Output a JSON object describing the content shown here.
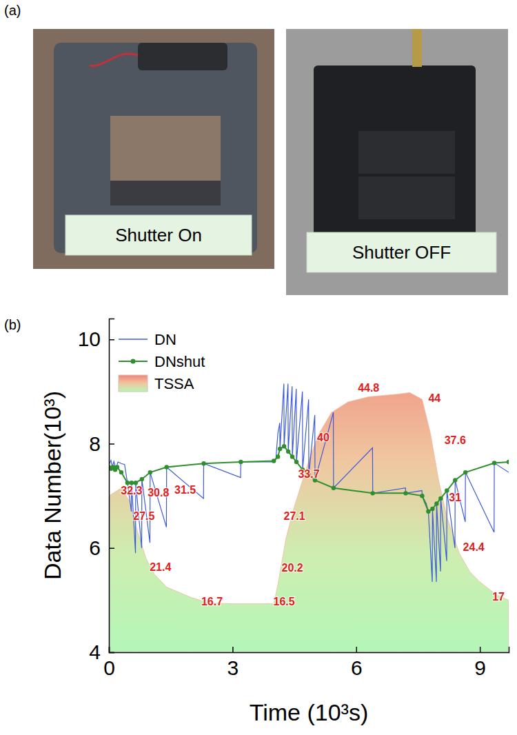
{
  "panel_a": {
    "panel_label": "(a)",
    "captions": [
      "Shutter On",
      "Shutter OFF"
    ]
  },
  "chart_data": {
    "type": "line",
    "panel_label": "(b)",
    "x_label": "Time (10³s)",
    "y_label": "Data Number(10³)",
    "xlim": [
      0,
      9.7
    ],
    "xticks": [
      0,
      3,
      6,
      9
    ],
    "ylim": [
      4,
      10.4
    ],
    "yticks": [
      4,
      6,
      8,
      10
    ],
    "legend": "upper left",
    "series": [
      {
        "name": "DN",
        "type": "line",
        "color": "#3d5bd6",
        "x": [
          0,
          0.05,
          0.08,
          0.12,
          0.17,
          0.22,
          0.3,
          0.38,
          0.45,
          0.545,
          0.55,
          0.645,
          0.65,
          0.795,
          0.8,
          0.995,
          1.0,
          1.395,
          1.4,
          2.295,
          2.3,
          3.195,
          3.2,
          4.0,
          4.05,
          4.1,
          4.145,
          4.15,
          4.245,
          4.25,
          4.345,
          4.35,
          4.445,
          4.45,
          4.545,
          4.55,
          4.695,
          4.7,
          4.845,
          4.85,
          4.995,
          5.0,
          5.445,
          5.45,
          6.395,
          6.4,
          7.195,
          7.2,
          7.595,
          7.6,
          7.7,
          7.75,
          7.845,
          7.85,
          7.945,
          7.95,
          8.045,
          8.05,
          8.195,
          8.2,
          8.395,
          8.4,
          8.645,
          8.65,
          9.345,
          9.35,
          9.7
        ],
        "values": [
          7.6,
          7.68,
          7.55,
          7.66,
          7.52,
          7.65,
          7.62,
          7.6,
          7.25,
          6.7,
          7.25,
          5.9,
          7.25,
          6.0,
          7.32,
          6.1,
          7.45,
          6.4,
          7.55,
          6.95,
          7.62,
          7.35,
          7.65,
          7.65,
          7.7,
          8.2,
          8.4,
          7.9,
          9.15,
          7.95,
          9.15,
          7.85,
          9.1,
          7.75,
          9.05,
          7.65,
          9.0,
          7.5,
          8.85,
          7.4,
          8.55,
          7.3,
          8.6,
          7.15,
          7.92,
          7.05,
          7.15,
          7.05,
          7.1,
          7.0,
          6.85,
          6.7,
          5.35,
          6.75,
          5.35,
          6.85,
          5.55,
          6.95,
          5.75,
          7.1,
          6.0,
          7.3,
          6.5,
          7.45,
          6.3,
          7.63,
          7.45
        ]
      },
      {
        "name": "DNshut",
        "type": "line",
        "marker": "circle",
        "color": "#2f8f2f",
        "x": [
          0,
          0.05,
          0.1,
          0.15,
          0.2,
          0.3,
          0.45,
          0.55,
          0.65,
          0.8,
          1.0,
          1.4,
          2.3,
          3.2,
          4.0,
          4.1,
          4.15,
          4.25,
          4.35,
          4.45,
          4.55,
          4.7,
          4.85,
          5.0,
          5.45,
          6.4,
          7.2,
          7.6,
          7.75,
          7.85,
          7.95,
          8.05,
          8.2,
          8.4,
          8.65,
          9.35,
          9.7
        ],
        "values": [
          7.55,
          7.52,
          7.55,
          7.5,
          7.55,
          7.45,
          7.25,
          7.25,
          7.25,
          7.32,
          7.45,
          7.55,
          7.62,
          7.65,
          7.67,
          7.75,
          7.9,
          7.95,
          7.85,
          7.75,
          7.65,
          7.5,
          7.4,
          7.3,
          7.15,
          7.05,
          7.05,
          7.0,
          6.7,
          6.75,
          6.85,
          6.95,
          7.1,
          7.3,
          7.45,
          7.63,
          7.65
        ]
      },
      {
        "name": "TSSA",
        "type": "area",
        "x": [
          0,
          0.3,
          0.5,
          0.7,
          0.9,
          1.1,
          1.4,
          2.0,
          2.4,
          3.0,
          4.0,
          4.1,
          4.3,
          4.5,
          4.7,
          4.9,
          5.1,
          5.4,
          5.8,
          6.3,
          7.0,
          7.3,
          7.6,
          7.8,
          8.0,
          8.2,
          8.5,
          8.75,
          9.0,
          9.4,
          9.7
        ],
        "values": [
          7.0,
          7.15,
          6.9,
          6.3,
          5.8,
          5.5,
          5.25,
          5.05,
          4.95,
          4.93,
          4.93,
          5.3,
          6.2,
          6.8,
          7.3,
          7.8,
          8.2,
          8.6,
          8.8,
          8.9,
          8.95,
          8.98,
          8.85,
          8.2,
          7.3,
          6.6,
          5.9,
          5.55,
          5.35,
          5.1,
          5.0
        ]
      }
    ],
    "annotations": [
      {
        "text": "32.3",
        "x": 0.55,
        "y": 7.08
      },
      {
        "text": "30.8",
        "x": 1.2,
        "y": 7.05
      },
      {
        "text": "31.5",
        "x": 1.85,
        "y": 7.1
      },
      {
        "text": "27.5",
        "x": 0.85,
        "y": 6.6
      },
      {
        "text": "21.4",
        "x": 1.25,
        "y": 5.62
      },
      {
        "text": "16.7",
        "x": 2.5,
        "y": 4.95
      },
      {
        "text": "16.5",
        "x": 4.25,
        "y": 4.95
      },
      {
        "text": "20.2",
        "x": 4.45,
        "y": 5.6
      },
      {
        "text": "27.1",
        "x": 4.5,
        "y": 6.6
      },
      {
        "text": "33.7",
        "x": 4.85,
        "y": 7.4
      },
      {
        "text": "40",
        "x": 5.2,
        "y": 8.1
      },
      {
        "text": "44.8",
        "x": 6.3,
        "y": 9.05
      },
      {
        "text": "44",
        "x": 7.9,
        "y": 8.85
      },
      {
        "text": "37.6",
        "x": 8.4,
        "y": 8.05
      },
      {
        "text": "31",
        "x": 8.4,
        "y": 6.95
      },
      {
        "text": "24.4",
        "x": 8.85,
        "y": 6.0
      },
      {
        "text": "17",
        "x": 9.45,
        "y": 5.05
      }
    ]
  }
}
